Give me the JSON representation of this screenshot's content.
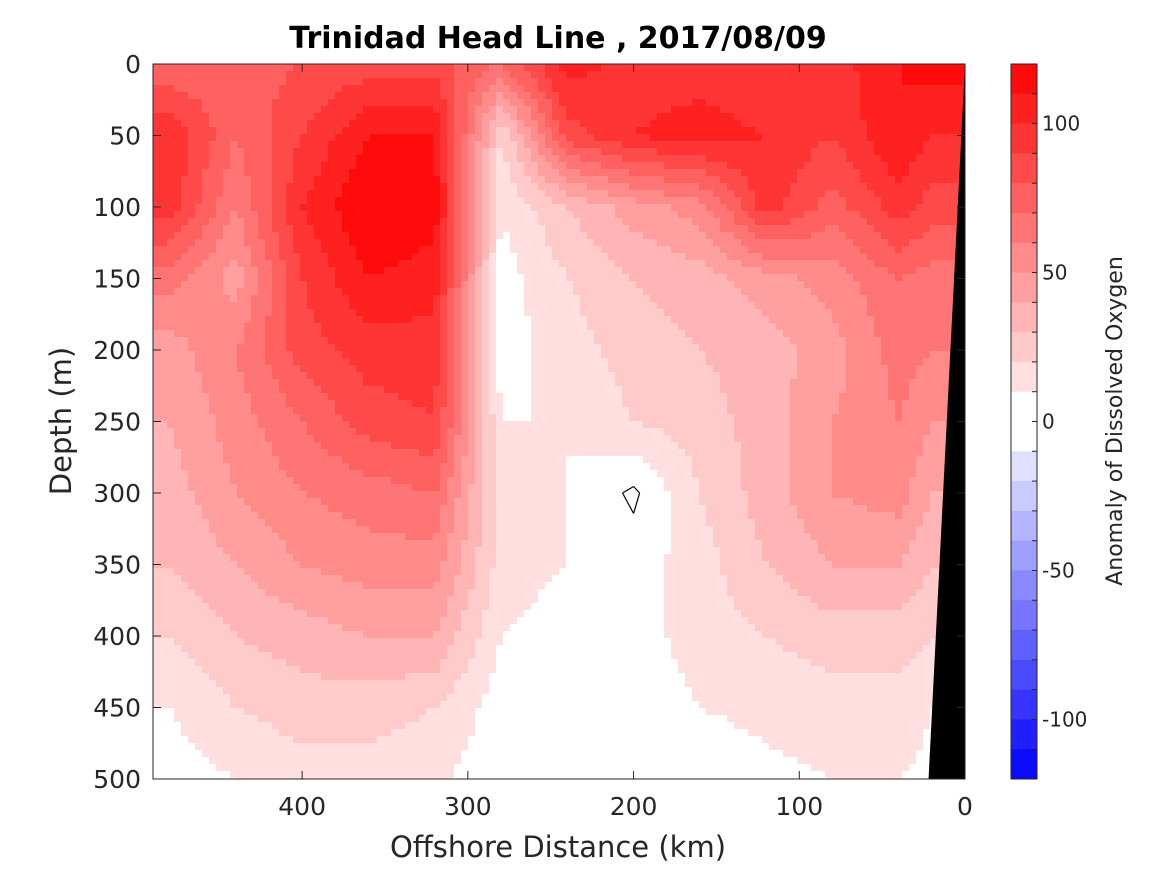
{
  "chart_data": {
    "type": "contour",
    "title": "Trinidad Head Line , 2017/08/09",
    "xlabel": "Offshore Distance (km)",
    "ylabel": "Depth (m)",
    "colorbar_label": "Anomaly of Dissolved Oxygen",
    "xlim": [
      490,
      0
    ],
    "ylim": [
      0,
      500
    ],
    "y_reversed": true,
    "x_ticks": [
      400,
      300,
      200,
      100,
      0
    ],
    "y_ticks": [
      0,
      50,
      100,
      150,
      200,
      250,
      300,
      350,
      400,
      450,
      500
    ],
    "colorbar": {
      "range": [
        -120,
        120
      ],
      "level_step": 10,
      "ticks": [
        100,
        50,
        0,
        -50,
        -100
      ],
      "low_color": "#0000ff",
      "mid_color": "#ffffff",
      "high_color": "#ff0000"
    },
    "distance_km": [
      480,
      440,
      400,
      360,
      320,
      280,
      240,
      200,
      160,
      120,
      80,
      40,
      20
    ],
    "depth_m": [
      0,
      50,
      100,
      150,
      200,
      250,
      300,
      350,
      400,
      450,
      500
    ],
    "values": [
      [
        70,
        75,
        80,
        85,
        85,
        70,
        105,
        95,
        95,
        90,
        95,
        110,
        115
      ],
      [
        100,
        70,
        90,
        110,
        110,
        20,
        85,
        100,
        105,
        100,
        90,
        110,
        100
      ],
      [
        95,
        60,
        100,
        120,
        115,
        10,
        30,
        45,
        55,
        95,
        75,
        95,
        85
      ],
      [
        65,
        45,
        90,
        110,
        105,
        5,
        20,
        30,
        35,
        45,
        55,
        70,
        65
      ],
      [
        45,
        60,
        85,
        95,
        95,
        5,
        15,
        25,
        30,
        35,
        45,
        65,
        60
      ],
      [
        40,
        55,
        70,
        85,
        90,
        10,
        10,
        20,
        25,
        35,
        50,
        60,
        50
      ],
      [
        35,
        50,
        60,
        65,
        70,
        15,
        10,
        -2,
        20,
        35,
        50,
        55,
        40
      ],
      [
        30,
        40,
        50,
        55,
        55,
        15,
        10,
        5,
        15,
        30,
        40,
        40,
        30
      ],
      [
        20,
        30,
        35,
        40,
        40,
        10,
        5,
        5,
        15,
        20,
        25,
        25,
        20
      ],
      [
        10,
        20,
        25,
        25,
        20,
        5,
        3,
        3,
        10,
        12,
        15,
        15,
        10
      ],
      [
        5,
        10,
        15,
        15,
        12,
        3,
        2,
        2,
        5,
        8,
        10,
        10,
        8
      ]
    ],
    "bathymetry_km": [
      [
        0,
        0
      ],
      [
        22,
        500
      ],
      [
        0,
        500
      ]
    ]
  }
}
